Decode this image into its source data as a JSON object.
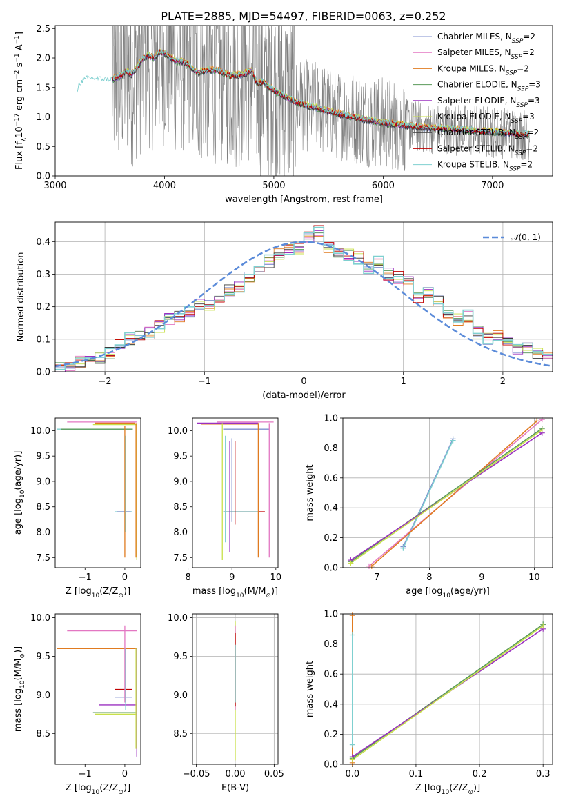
{
  "figure": {
    "title": "PLATE=2885, MJD=54497, FIBERID=0063, z=0.252"
  },
  "colors": {
    "data": "#808080",
    "gaussian": "#5b8bd9"
  },
  "models": [
    {
      "name": "Chabrier MILES, N",
      "sub": "SSP",
      "suffix": "=2",
      "color": "#7f8fcf"
    },
    {
      "name": "Salpeter MILES, N",
      "sub": "SSP",
      "suffix": "=2",
      "color": "#e377c2"
    },
    {
      "name": "Kroupa MILES, N",
      "sub": "SSP",
      "suffix": "=2",
      "color": "#e07b20"
    },
    {
      "name": "Chabrier ELODIE, N",
      "sub": "SSP",
      "suffix": "=3",
      "color": "#5a9a5a"
    },
    {
      "name": "Salpeter ELODIE, N",
      "sub": "SSP",
      "suffix": "=3",
      "color": "#9b30c0"
    },
    {
      "name": "Kroupa ELODIE, N",
      "sub": "SSP",
      "suffix": "=3",
      "color": "#c8e04a"
    },
    {
      "name": "Chabrier STELIB, N",
      "sub": "SSP",
      "suffix": "=2",
      "color": "#3a3a3a"
    },
    {
      "name": "Salpeter STELIB, N",
      "sub": "SSP",
      "suffix": "=2",
      "color": "#c00000"
    },
    {
      "name": "Kroupa STELIB, N",
      "sub": "SSP",
      "suffix": "=2",
      "color": "#7fd0d0"
    }
  ],
  "chart_data": [
    {
      "id": "spectrum",
      "type": "line",
      "xlabel": "wavelength [Angstrom, rest frame]",
      "ylabel_main": "Flux [f",
      "ylabel_sub": "λ",
      "ylabel_rest": "10",
      "ylabel_exp1": "−17",
      "ylabel_mid": " erg cm",
      "ylabel_exp2": "−2",
      "ylabel_mid2": " s",
      "ylabel_exp3": "−1",
      "ylabel_end": " A",
      "ylabel_exp4": "−1",
      "ylabel_close": "]",
      "xlim": [
        3000,
        7550
      ],
      "ylim": [
        0,
        2.55
      ],
      "xticks": [
        3000,
        4000,
        5000,
        6000,
        7000
      ],
      "xtick_labels": [
        "3000",
        "4000",
        "5000",
        "6000",
        "7000"
      ],
      "yticks": [
        0.0,
        0.5,
        1.0,
        1.5,
        2.0,
        2.5
      ],
      "ytick_labels": [
        "0.0",
        "0.5",
        "1.0",
        "1.5",
        "2.0",
        "2.5"
      ],
      "data_range": [
        3520,
        7340
      ],
      "model_curve": {
        "x": [
          3200,
          3220,
          3300,
          3400,
          3500,
          3550,
          3600,
          3650,
          3700,
          3750,
          3800,
          3850,
          3900,
          3950,
          4000,
          4100,
          4200,
          4300,
          4400,
          4500,
          4600,
          4700,
          4800,
          4850,
          4900,
          5000,
          5100,
          5200,
          5400,
          5600,
          5800,
          6000,
          6200,
          6400,
          6600,
          6800,
          7000,
          7200,
          7340
        ],
        "y": [
          1.42,
          1.55,
          1.65,
          1.63,
          1.62,
          1.66,
          1.7,
          1.78,
          1.72,
          1.85,
          1.98,
          2.05,
          2.0,
          2.1,
          2.08,
          1.95,
          1.92,
          1.75,
          1.8,
          1.78,
          1.7,
          1.72,
          1.78,
          1.55,
          1.6,
          1.45,
          1.35,
          1.25,
          1.15,
          1.05,
          0.97,
          0.9,
          0.86,
          0.82,
          0.8,
          0.77,
          0.75,
          0.72,
          0.7
        ]
      },
      "legend": "upper right"
    },
    {
      "id": "residuals",
      "type": "bar",
      "xlabel": "(data-model)/error",
      "ylabel": "Normed distribution",
      "xlim": [
        -2.5,
        2.5
      ],
      "ylim": [
        0,
        0.46
      ],
      "xticks": [
        -2,
        -1,
        0,
        1,
        2
      ],
      "xtick_labels": [
        "−2",
        "−1",
        "0",
        "1",
        "2"
      ],
      "yticks": [
        0.0,
        0.1,
        0.2,
        0.3,
        0.4
      ],
      "ytick_labels": [
        "0.0",
        "0.1",
        "0.2",
        "0.3",
        "0.4"
      ],
      "bin_width": 0.1,
      "bin_start": -2.5,
      "hist_base": [
        0.01,
        0.02,
        0.03,
        0.03,
        0.04,
        0.06,
        0.08,
        0.1,
        0.11,
        0.12,
        0.14,
        0.16,
        0.17,
        0.18,
        0.21,
        0.2,
        0.22,
        0.25,
        0.26,
        0.29,
        0.31,
        0.34,
        0.36,
        0.38,
        0.38,
        0.41,
        0.43,
        0.38,
        0.37,
        0.36,
        0.35,
        0.32,
        0.34,
        0.3,
        0.29,
        0.28,
        0.23,
        0.24,
        0.22,
        0.18,
        0.16,
        0.17,
        0.12,
        0.1,
        0.11,
        0.09,
        0.07,
        0.07,
        0.06,
        0.05
      ],
      "gaussian_label_main": "𝒩",
      "gaussian_label_rest": "(0, 1)",
      "legend": "upper right"
    },
    {
      "id": "age-vs-Z",
      "type": "scatter",
      "xlabel_main": "Z [log",
      "xlabel_sub": "10",
      "xlabel_rest": "(Z/Z",
      "xlabel_sub2": "⊙",
      "xlabel_end": ")]",
      "ylabel_main": "age  [log",
      "ylabel_sub": "10",
      "ylabel_rest": "(age/yr)]",
      "xlim": [
        -1.75,
        0.4
      ],
      "ylim": [
        7.3,
        10.25
      ],
      "xticks": [
        -1,
        0
      ],
      "xtick_labels": [
        "−1",
        "0"
      ],
      "yticks": [
        7.5,
        8.0,
        8.5,
        9.0,
        9.5,
        10.0
      ],
      "ytick_labels": [
        "7.5",
        "8.0",
        "8.5",
        "9.0",
        "9.5",
        "10.0"
      ],
      "hbars": [
        {
          "y": 10.17,
          "x0": -1.45,
          "x1": 0.3,
          "model": 1
        },
        {
          "y": 10.15,
          "x0": -0.75,
          "x1": 0.25,
          "model": 2
        },
        {
          "y": 10.12,
          "x0": -0.8,
          "x1": 0.3,
          "model": 5
        },
        {
          "y": 10.03,
          "x0": -1.7,
          "x1": 0.0,
          "model": 8
        },
        {
          "y": 10.03,
          "x0": -1.6,
          "x1": 0.2,
          "model": 3
        },
        {
          "y": 8.4,
          "x0": -0.25,
          "x1": 0.18,
          "model": 8
        },
        {
          "y": 8.4,
          "x0": -0.2,
          "x1": 0.15,
          "model": 0
        }
      ],
      "vbars": [
        {
          "x": 0.0,
          "y0": 7.5,
          "y1": 10.1,
          "model": 2
        },
        {
          "x": 0.02,
          "y0": 8.0,
          "y1": 9.9,
          "model": 8
        },
        {
          "x": 0.3,
          "y0": 7.45,
          "y1": 10.15,
          "model": 5
        },
        {
          "x": 0.28,
          "y0": 7.5,
          "y1": 10.15,
          "model": 2
        }
      ]
    },
    {
      "id": "age-vs-mass",
      "type": "scatter",
      "xlabel_main": "mass [log",
      "xlabel_sub": "10",
      "xlabel_rest": "(M/M",
      "xlabel_sub2": "⊙",
      "xlabel_end": ")]",
      "xlim": [
        8.1,
        10.05
      ],
      "ylim": [
        7.3,
        10.25
      ],
      "xticks": [
        8,
        9,
        10
      ],
      "xtick_labels": [
        "8",
        "9",
        "10"
      ],
      "yticks": [
        7.5,
        8.0,
        8.5,
        9.0,
        9.5,
        10.0
      ],
      "ytick_labels": [
        "7.5",
        "8.0",
        "8.5",
        "9.0",
        "9.5",
        "10.0"
      ],
      "hbars": [
        {
          "y": 10.17,
          "x0": 8.65,
          "x1": 9.95,
          "model": 1
        },
        {
          "y": 10.15,
          "x0": 8.2,
          "x1": 9.6,
          "model": 4
        },
        {
          "y": 10.13,
          "x0": 8.3,
          "x1": 9.6,
          "model": 2
        },
        {
          "y": 10.03,
          "x0": 8.8,
          "x1": 9.85,
          "model": 0
        },
        {
          "y": 8.4,
          "x0": 8.8,
          "x1": 9.75,
          "model": 7
        },
        {
          "y": 8.4,
          "x0": 8.8,
          "x1": 9.6,
          "model": 8
        }
      ],
      "vbars": [
        {
          "x": 8.78,
          "y0": 7.45,
          "y1": 10.15,
          "model": 5
        },
        {
          "x": 8.95,
          "y0": 7.6,
          "y1": 9.8,
          "model": 4
        },
        {
          "x": 9.0,
          "y0": 8.2,
          "y1": 9.85,
          "model": 0
        },
        {
          "x": 9.07,
          "y0": 8.15,
          "y1": 9.8,
          "model": 7
        },
        {
          "x": 9.6,
          "y0": 7.5,
          "y1": 10.15,
          "model": 2
        },
        {
          "x": 9.85,
          "y0": 7.5,
          "y1": 10.15,
          "model": 1
        },
        {
          "x": 8.85,
          "y0": 7.8,
          "y1": 9.9,
          "model": 8
        }
      ]
    },
    {
      "id": "weight-vs-age",
      "type": "line",
      "xlabel_main": "age  [log",
      "xlabel_sub": "10",
      "xlabel_rest": "(age/yr)]",
      "ylabel": "mass weight",
      "xlim": [
        6.35,
        10.35
      ],
      "ylim": [
        0,
        1.0
      ],
      "xticks": [
        7,
        8,
        9,
        10
      ],
      "xtick_labels": [
        "7",
        "8",
        "9",
        "10"
      ],
      "yticks": [
        0.0,
        0.2,
        0.4,
        0.6,
        0.8,
        1.0
      ],
      "ytick_labels": [
        "0.0",
        "0.2",
        "0.4",
        "0.6",
        "0.8",
        "1.0"
      ],
      "series": [
        {
          "model": 0,
          "x": [
            7.5,
            8.45
          ],
          "y": [
            0.14,
            0.86
          ]
        },
        {
          "model": 8,
          "x": [
            7.5,
            8.45
          ],
          "y": [
            0.13,
            0.85
          ]
        },
        {
          "model": 1,
          "x": [
            6.85,
            10.15
          ],
          "y": [
            0.01,
            0.99
          ]
        },
        {
          "model": 2,
          "x": [
            6.9,
            10.05
          ],
          "y": [
            0.01,
            0.98
          ]
        },
        {
          "model": 3,
          "x": [
            6.5,
            10.15
          ],
          "y": [
            0.04,
            0.93
          ]
        },
        {
          "model": 4,
          "x": [
            6.5,
            10.15
          ],
          "y": [
            0.05,
            0.9
          ]
        },
        {
          "model": 5,
          "x": [
            6.5,
            10.15
          ],
          "y": [
            0.03,
            0.92
          ]
        }
      ]
    },
    {
      "id": "mass-vs-Z",
      "type": "scatter",
      "xlabel_main": "Z [log",
      "xlabel_sub": "10",
      "xlabel_rest": "(Z/Z",
      "xlabel_sub2": "⊙",
      "xlabel_end": ")]",
      "ylabel_main": "mass [log",
      "ylabel_sub": "10",
      "ylabel_rest": "(M/M",
      "ylabel_sub2": "⊙",
      "ylabel_end": ")]",
      "xlim": [
        -1.75,
        0.4
      ],
      "ylim": [
        8.1,
        10.05
      ],
      "xticks": [
        -1,
        0
      ],
      "xtick_labels": [
        "−1",
        "0"
      ],
      "yticks": [
        8.5,
        9.0,
        9.5,
        10.0
      ],
      "ytick_labels": [
        "8.5",
        "9.0",
        "9.5",
        "10.0"
      ],
      "hbars": [
        {
          "y": 9.83,
          "x0": -1.45,
          "x1": 0.3,
          "model": 1
        },
        {
          "y": 9.6,
          "x0": -1.7,
          "x1": 0.3,
          "model": 2
        },
        {
          "y": 9.07,
          "x0": -0.25,
          "x1": 0.18,
          "model": 7
        },
        {
          "y": 8.97,
          "x0": -0.25,
          "x1": 0.18,
          "model": 0
        },
        {
          "y": 8.87,
          "x0": -0.65,
          "x1": 0.3,
          "model": 4
        },
        {
          "y": 8.77,
          "x0": -0.8,
          "x1": 0.3,
          "model": 3
        },
        {
          "y": 8.75,
          "x0": -0.75,
          "x1": 0.3,
          "model": 5
        }
      ],
      "vbars": [
        {
          "x": 0.0,
          "y0": 8.9,
          "y1": 9.9,
          "model": 1
        },
        {
          "x": 0.02,
          "y0": 8.8,
          "y1": 9.6,
          "model": 8
        },
        {
          "x": 0.3,
          "y0": 8.2,
          "y1": 9.6,
          "model": 4
        },
        {
          "x": 0.28,
          "y0": 8.3,
          "y1": 9.6,
          "model": 5
        }
      ]
    },
    {
      "id": "mass-vs-EBV",
      "type": "scatter",
      "xlabel": "E(B-V)",
      "xlim": [
        -0.055,
        0.055
      ],
      "ylim": [
        8.1,
        10.05
      ],
      "xticks": [
        -0.05,
        0.0,
        0.05
      ],
      "xtick_labels": [
        "−0.05",
        "0.00",
        "0.05"
      ],
      "yticks": [
        8.5,
        9.0,
        9.5,
        10.0
      ],
      "ytick_labels": [
        "8.5",
        "9.0",
        "9.5",
        "10.0"
      ],
      "vbars": [
        {
          "x": 0.0,
          "y0": 8.15,
          "y1": 9.95,
          "model": 5
        },
        {
          "x": 0.0,
          "y0": 8.8,
          "y1": 9.9,
          "model": 1
        },
        {
          "x": 0.0,
          "y0": 8.85,
          "y1": 9.8,
          "model": 7
        },
        {
          "x": 0.0,
          "y0": 8.9,
          "y1": 9.65,
          "model": 8
        }
      ]
    },
    {
      "id": "weight-vs-Z",
      "type": "line",
      "xlabel_main": "Z [log",
      "xlabel_sub": "10",
      "xlabel_rest": "(Z/Z",
      "xlabel_sub2": "⊙",
      "xlabel_end": ")]",
      "ylabel": "mass weight",
      "xlim": [
        -0.015,
        0.315
      ],
      "ylim": [
        0,
        1.0
      ],
      "xticks": [
        0.0,
        0.1,
        0.2,
        0.3
      ],
      "xtick_labels": [
        "0.0",
        "0.1",
        "0.2",
        "0.3"
      ],
      "yticks": [
        0.0,
        0.2,
        0.4,
        0.6,
        0.8,
        1.0
      ],
      "ytick_labels": [
        "0.0",
        "0.2",
        "0.4",
        "0.6",
        "0.8",
        "1.0"
      ],
      "series": [
        {
          "model": 2,
          "x": [
            0.0,
            0.0
          ],
          "y": [
            0.01,
            0.99
          ]
        },
        {
          "model": 8,
          "x": [
            0.0,
            0.0
          ],
          "y": [
            0.13,
            0.86
          ]
        },
        {
          "model": 3,
          "x": [
            0.0,
            0.3
          ],
          "y": [
            0.04,
            0.93
          ]
        },
        {
          "model": 4,
          "x": [
            0.0,
            0.3
          ],
          "y": [
            0.05,
            0.9
          ]
        },
        {
          "model": 5,
          "x": [
            0.0,
            0.3
          ],
          "y": [
            0.03,
            0.92
          ]
        }
      ]
    }
  ]
}
